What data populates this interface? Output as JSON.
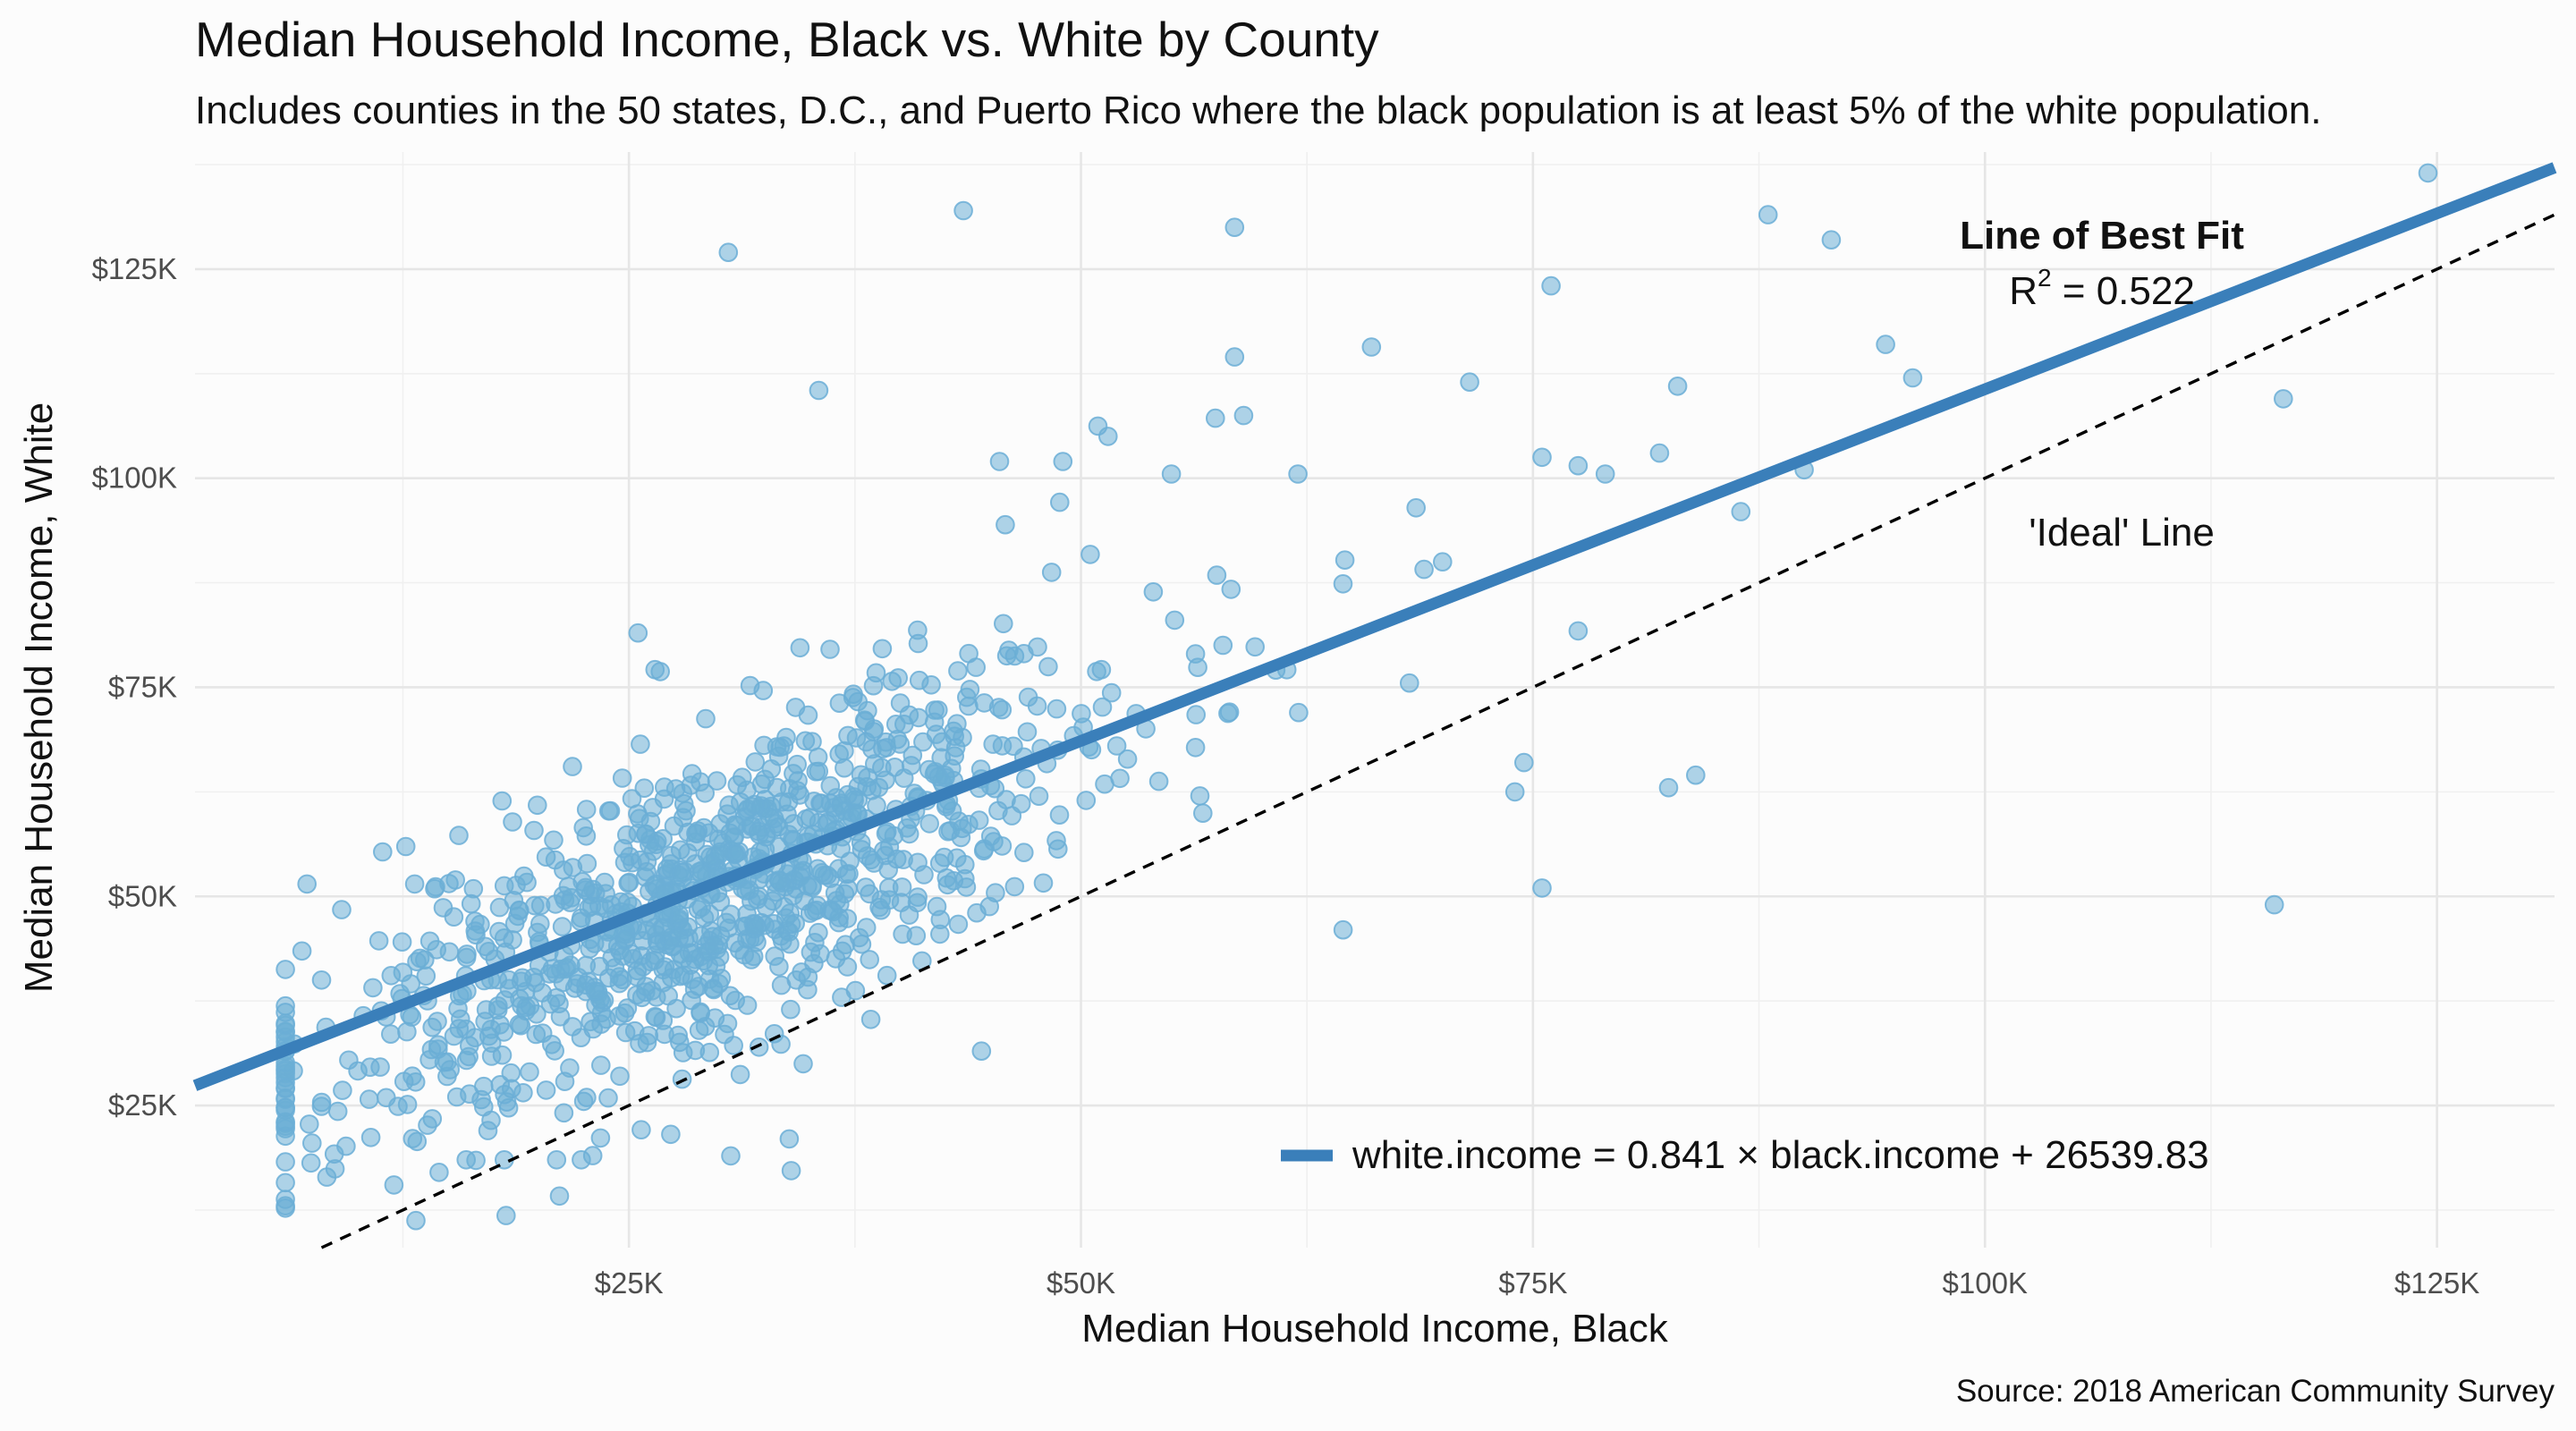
{
  "chart_data": {
    "type": "scatter",
    "title": "Median Household Income, Black vs. White by County",
    "subtitle": "Includes counties in the 50 states, D.C., and Puerto Rico where the black population is at least 5% of the white population.",
    "xlabel": "Median Household Income, Black",
    "ylabel": "Median Household Income, White",
    "caption": "Source: 2018 American Community Survey",
    "xlim": [
      1000,
      131500
    ],
    "ylim": [
      8000,
      139000
    ],
    "x_ticks": [
      25000,
      50000,
      75000,
      100000,
      125000
    ],
    "x_tick_labels": [
      "$25K",
      "$50K",
      "$75K",
      "$100K",
      "$125K"
    ],
    "y_ticks": [
      25000,
      50000,
      75000,
      100000,
      125000
    ],
    "y_tick_labels": [
      "$25K",
      "$50K",
      "$75K",
      "$100K",
      "$125K"
    ],
    "grid": true,
    "point_color": "#6baed6",
    "fit_line": {
      "slope": 0.841,
      "intercept": 26539.83,
      "color": "#3a7fba",
      "legend_label": "white.income = 0.841 × black.income + 26539.83",
      "legend_position": "bottom-right"
    },
    "ideal_line": {
      "slope": 1,
      "intercept": 0,
      "label": "'Ideal' Line"
    },
    "fit_annotation": {
      "title": "Line of Best Fit",
      "r2_label": "R",
      "r2_exponent": "2",
      "r2_value": " = 0.522"
    },
    "seed_points": [
      [
        6000,
        13000
      ],
      [
        8000,
        40000
      ],
      [
        8700,
        19200
      ],
      [
        8900,
        24300
      ],
      [
        12000,
        15500
      ],
      [
        14500,
        17000
      ],
      [
        16000,
        18500
      ],
      [
        17200,
        22000
      ],
      [
        18500,
        27000
      ],
      [
        19500,
        29000
      ],
      [
        21000,
        18500
      ],
      [
        22500,
        25500
      ],
      [
        23000,
        19000
      ],
      [
        24500,
        28500
      ],
      [
        25500,
        81500
      ],
      [
        30500,
        127000
      ],
      [
        35500,
        110500
      ],
      [
        43500,
        132000
      ],
      [
        44500,
        31500
      ],
      [
        45500,
        102000
      ],
      [
        49000,
        102000
      ],
      [
        51500,
        105000
      ],
      [
        55000,
        100500
      ],
      [
        58500,
        130000
      ],
      [
        58500,
        114500
      ],
      [
        59000,
        107500
      ],
      [
        62000,
        100500
      ],
      [
        64500,
        46000
      ],
      [
        70000,
        90000
      ],
      [
        71500,
        111500
      ],
      [
        74000,
        62500
      ],
      [
        74500,
        66000
      ],
      [
        75500,
        51000
      ],
      [
        75500,
        102500
      ],
      [
        76000,
        123000
      ],
      [
        77500,
        101500
      ],
      [
        79000,
        100500
      ],
      [
        82000,
        103000
      ],
      [
        82500,
        63000
      ],
      [
        83000,
        111000
      ],
      [
        84000,
        64500
      ],
      [
        86500,
        96000
      ],
      [
        88000,
        131500
      ],
      [
        90000,
        101000
      ],
      [
        91500,
        128500
      ],
      [
        94500,
        116000
      ],
      [
        96000,
        112000
      ],
      [
        116000,
        49000
      ],
      [
        116500,
        109500
      ],
      [
        124500,
        136500
      ]
    ],
    "cluster": {
      "count": 1050,
      "center": [
        30000,
        51000
      ],
      "sd_x": 9000,
      "slope": 0.95,
      "sd_y": 8500
    }
  }
}
